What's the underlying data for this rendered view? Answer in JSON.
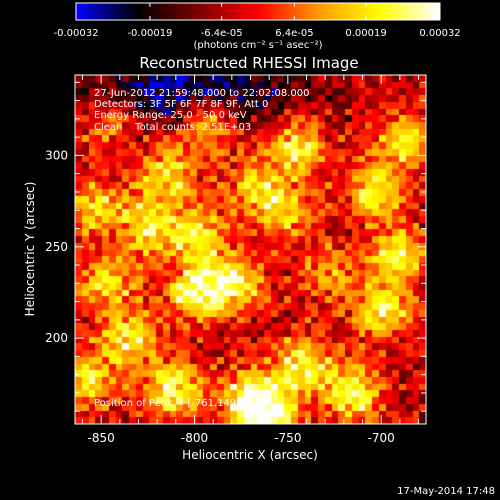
{
  "chart_data": {
    "type": "heatmap",
    "title": "Reconstructed RHESSI Image",
    "xlabel": "Heliocentric X (arcsec)",
    "ylabel": "Heliocentric Y (arcsec)",
    "xlim": [
      -864,
      -676
    ],
    "ylim": [
      153,
      344
    ],
    "x_ticks": [
      -850,
      -800,
      -750,
      -700
    ],
    "x_tick_labels": [
      "-850",
      "-800",
      "-750",
      "-700"
    ],
    "y_ticks": [
      200,
      250,
      300
    ],
    "y_tick_labels": [
      "200",
      "250",
      "300"
    ],
    "colorbar": {
      "range": [
        -0.00032,
        0.00032
      ],
      "ticks": [
        -0.00032,
        -0.00019,
        -6.4e-05,
        6.4e-05,
        0.00019,
        0.00032
      ],
      "tick_labels": [
        "-0.00032",
        "-0.00019",
        "-6.4e-05",
        "6.4e-05",
        "0.00019",
        "0.00032"
      ],
      "unit_label": "(photons cm⁻² s⁻¹ asec⁻²)",
      "colormap": [
        "#0000ff",
        "#000000",
        "#7a0000",
        "#ff0000",
        "#ff9900",
        "#ffff00",
        "#ffffff"
      ]
    },
    "annotations": [
      "27-Jun-2012 21:59:48.000 to 22:02:08.000",
      "Detectors: 3F 5F 6F 7F 8F 9F, Att 0",
      "Energy Range: 25.0 - 50.0 keV",
      "Clean    Total counts: 2.51E+03"
    ],
    "peak_text": "Position of Peak = [-761,149]",
    "peak_position": [
      -761,
      149
    ],
    "sources": [
      {
        "x": -793,
        "y": 318,
        "amp": 0.00026
      },
      {
        "x": -815,
        "y": 290,
        "amp": 0.00024
      },
      {
        "x": -824,
        "y": 262,
        "amp": 0.00027
      },
      {
        "x": -797,
        "y": 255,
        "amp": 0.00025
      },
      {
        "x": -779,
        "y": 230,
        "amp": 0.00028
      },
      {
        "x": -800,
        "y": 225,
        "amp": 0.0003
      },
      {
        "x": -846,
        "y": 230,
        "amp": 0.00025
      },
      {
        "x": -853,
        "y": 272,
        "amp": 0.00023
      },
      {
        "x": -835,
        "y": 200,
        "amp": 0.00027
      },
      {
        "x": -812,
        "y": 172,
        "amp": 0.00029
      },
      {
        "x": -770,
        "y": 168,
        "amp": 0.0003
      },
      {
        "x": -761,
        "y": 155,
        "amp": 0.00032
      },
      {
        "x": -742,
        "y": 185,
        "amp": 0.00028
      },
      {
        "x": -715,
        "y": 170,
        "amp": 0.00029
      },
      {
        "x": -700,
        "y": 215,
        "amp": 0.00027
      },
      {
        "x": -691,
        "y": 245,
        "amp": 0.00026
      },
      {
        "x": -703,
        "y": 280,
        "amp": 0.00027
      },
      {
        "x": -688,
        "y": 308,
        "amp": 0.00025
      },
      {
        "x": -745,
        "y": 305,
        "amp": 0.00028
      },
      {
        "x": -752,
        "y": 270,
        "amp": 0.00022
      },
      {
        "x": -769,
        "y": 283,
        "amp": 0.0002
      },
      {
        "x": -858,
        "y": 178,
        "amp": 0.00025
      },
      {
        "x": -728,
        "y": 235,
        "amp": 0.00018
      },
      {
        "x": -846,
        "y": 320,
        "amp": 0.0002
      }
    ],
    "negative_region": {
      "x": -803,
      "y": 335,
      "amp": -0.00025
    }
  },
  "footer": {
    "date_stamp": "17-May-2014 17:48"
  }
}
